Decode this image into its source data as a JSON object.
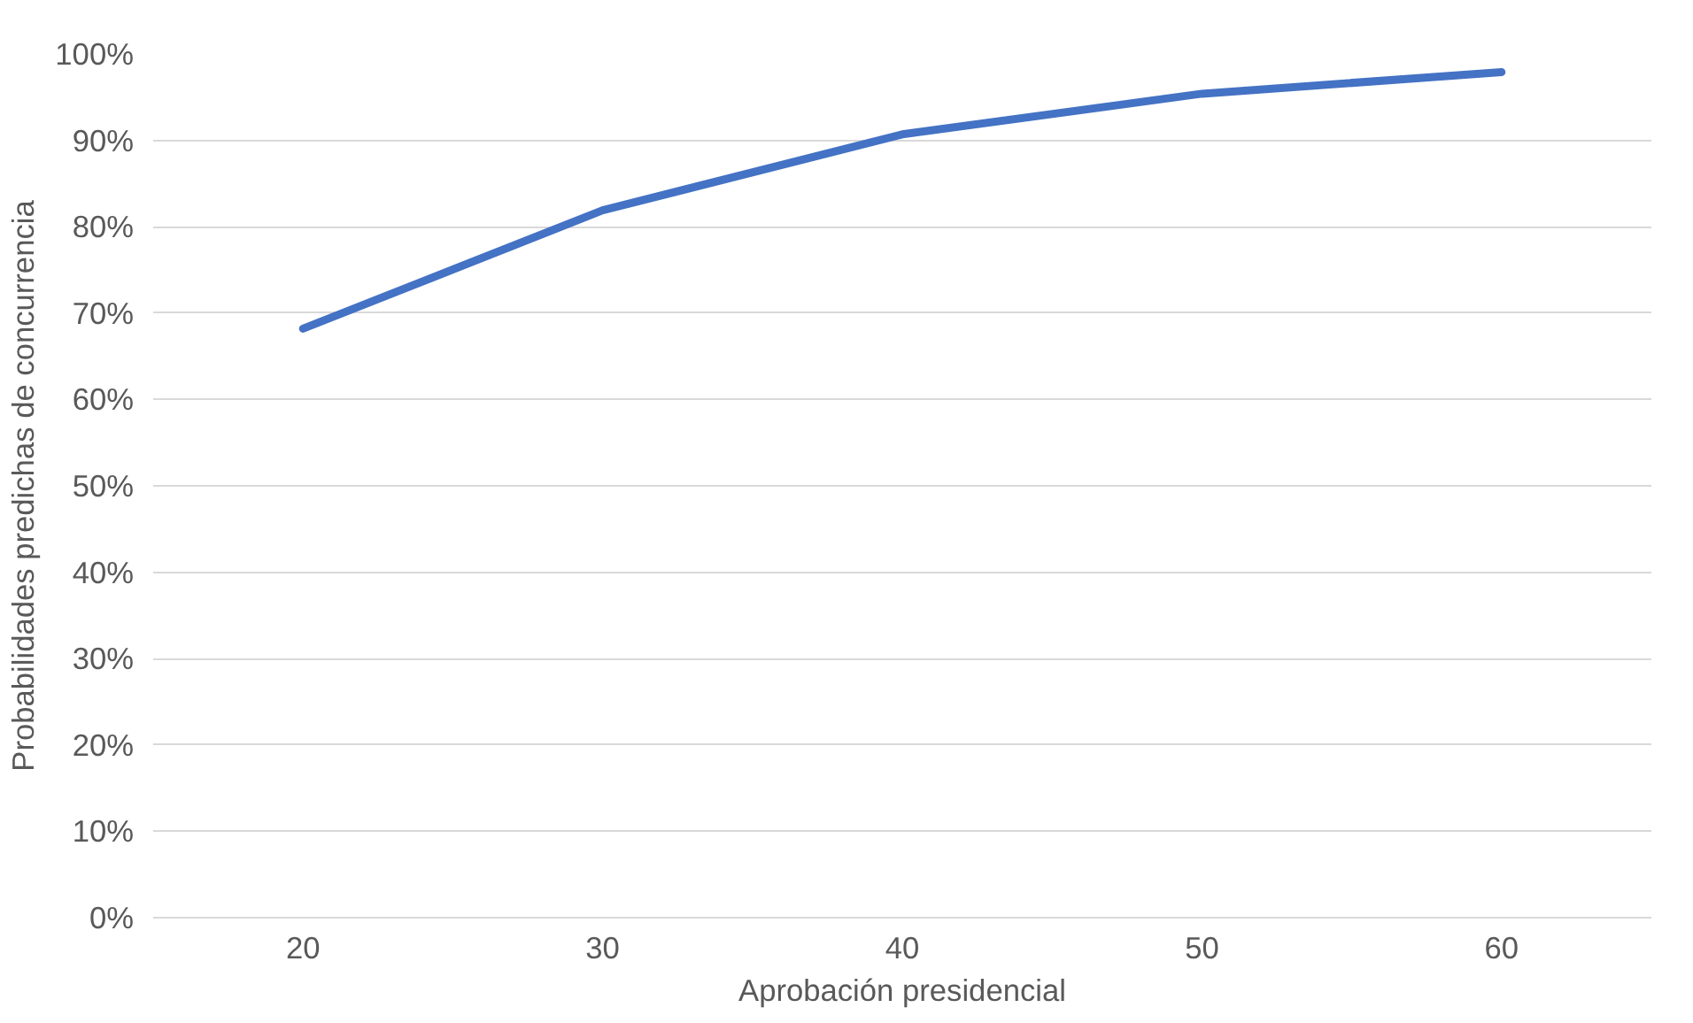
{
  "chart_data": {
    "type": "line",
    "xlabel": "Aprobación presidencial",
    "ylabel": "Probabilidades predichas de concurrencia",
    "categories": [
      "20",
      "30",
      "40",
      "50",
      "60"
    ],
    "series": [
      {
        "color": "#4472c4",
        "values": [
          68.2,
          81.9,
          90.7,
          95.4,
          97.9
        ]
      }
    ],
    "ylim": [
      0,
      100
    ],
    "yticks": [
      {
        "value": 0,
        "label": "0%"
      },
      {
        "value": 10,
        "label": "10%"
      },
      {
        "value": 20,
        "label": "20%"
      },
      {
        "value": 30,
        "label": "30%"
      },
      {
        "value": 40,
        "label": "40%"
      },
      {
        "value": 50,
        "label": "50%"
      },
      {
        "value": 60,
        "label": "60%"
      },
      {
        "value": 70,
        "label": "70%"
      },
      {
        "value": 80,
        "label": "80%"
      },
      {
        "value": 90,
        "label": "90%"
      },
      {
        "value": 100,
        "label": "100%"
      }
    ],
    "grid": "y",
    "marker": "none",
    "line_style": "solid"
  }
}
